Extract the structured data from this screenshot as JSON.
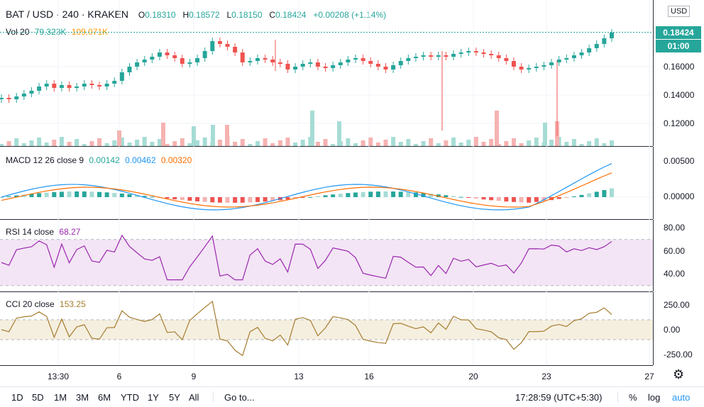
{
  "header": {
    "symbol": "BAT / USD · 240 · KRAKEN",
    "open_label": "O",
    "open": "0.18310",
    "high_label": "H",
    "high": "0.18572",
    "low_label": "L",
    "low": "0.18150",
    "close_label": "C",
    "close": "0.18424",
    "change": "+0.00208 (+1.14%)",
    "currency": "USD"
  },
  "volume": {
    "label": "Vol 20",
    "v1": "79.323K",
    "v2": "109.071K"
  },
  "price_axis": {
    "ticks": [
      "0.16000",
      "0.14000",
      "0.12000"
    ],
    "last_price": "0.18424",
    "countdown": "01:00"
  },
  "macd": {
    "label": "MACD 12 26 close 9",
    "v1": "0.00142",
    "v2": "0.00462",
    "v3": "0.00320",
    "ticks": [
      "0.00500",
      "0.00000"
    ]
  },
  "rsi": {
    "label": "RSI 14 close",
    "value": "68.27",
    "ticks": [
      "80.00",
      "60.00",
      "40.00"
    ]
  },
  "cci": {
    "label": "CCI 20 close",
    "value": "153.25",
    "ticks": [
      "250.00",
      "0.00",
      "-250.00"
    ]
  },
  "time_axis": {
    "ticks": [
      "13:30",
      "6",
      "9",
      "13",
      "16",
      "20",
      "23",
      "27"
    ]
  },
  "bottom": {
    "ranges": [
      "1D",
      "5D",
      "1M",
      "3M",
      "6M",
      "YTD",
      "1Y",
      "5Y",
      "All"
    ],
    "goto": "Go to...",
    "clock": "17:28:59 (UTC+5:30)",
    "percent": "%",
    "log": "log",
    "auto": "auto"
  },
  "colors": {
    "up": "#26a69a",
    "down": "#ef5350",
    "macd": "#2196f3",
    "signal": "#ff6d00",
    "rsi": "#9c27b0",
    "cci": "#a67c2e"
  },
  "chart_data": {
    "type": "candlestick",
    "title": "BAT / USD · 240 · KRAKEN",
    "ohlc_last": {
      "open": 0.1831,
      "high": 0.18572,
      "low": 0.1815,
      "close": 0.18424
    },
    "close_path": [
      0.138,
      0.137,
      0.139,
      0.141,
      0.143,
      0.146,
      0.148,
      0.145,
      0.147,
      0.145,
      0.146,
      0.148,
      0.147,
      0.146,
      0.148,
      0.15,
      0.156,
      0.16,
      0.163,
      0.165,
      0.167,
      0.17,
      0.168,
      0.166,
      0.162,
      0.163,
      0.166,
      0.171,
      0.178,
      0.176,
      0.174,
      0.17,
      0.163,
      0.164,
      0.166,
      0.165,
      0.163,
      0.162,
      0.158,
      0.16,
      0.162,
      0.163,
      0.16,
      0.159,
      0.161,
      0.163,
      0.165,
      0.166,
      0.164,
      0.162,
      0.16,
      0.158,
      0.161,
      0.164,
      0.166,
      0.167,
      0.168,
      0.167,
      0.168,
      0.167,
      0.169,
      0.17,
      0.171,
      0.17,
      0.169,
      0.168,
      0.166,
      0.164,
      0.16,
      0.158,
      0.159,
      0.16,
      0.161,
      0.163,
      0.165,
      0.166,
      0.168,
      0.17,
      0.173,
      0.176,
      0.18,
      0.184
    ],
    "volume_spikes": {
      "6": "up",
      "9": "up",
      "13": "up",
      "16": "up",
      "20": "down",
      "23": "up"
    },
    "macd": {
      "macd": 0.00462,
      "signal": 0.0032,
      "hist": 0.00142
    },
    "rsi": 68.27,
    "cci": 153.25
  }
}
